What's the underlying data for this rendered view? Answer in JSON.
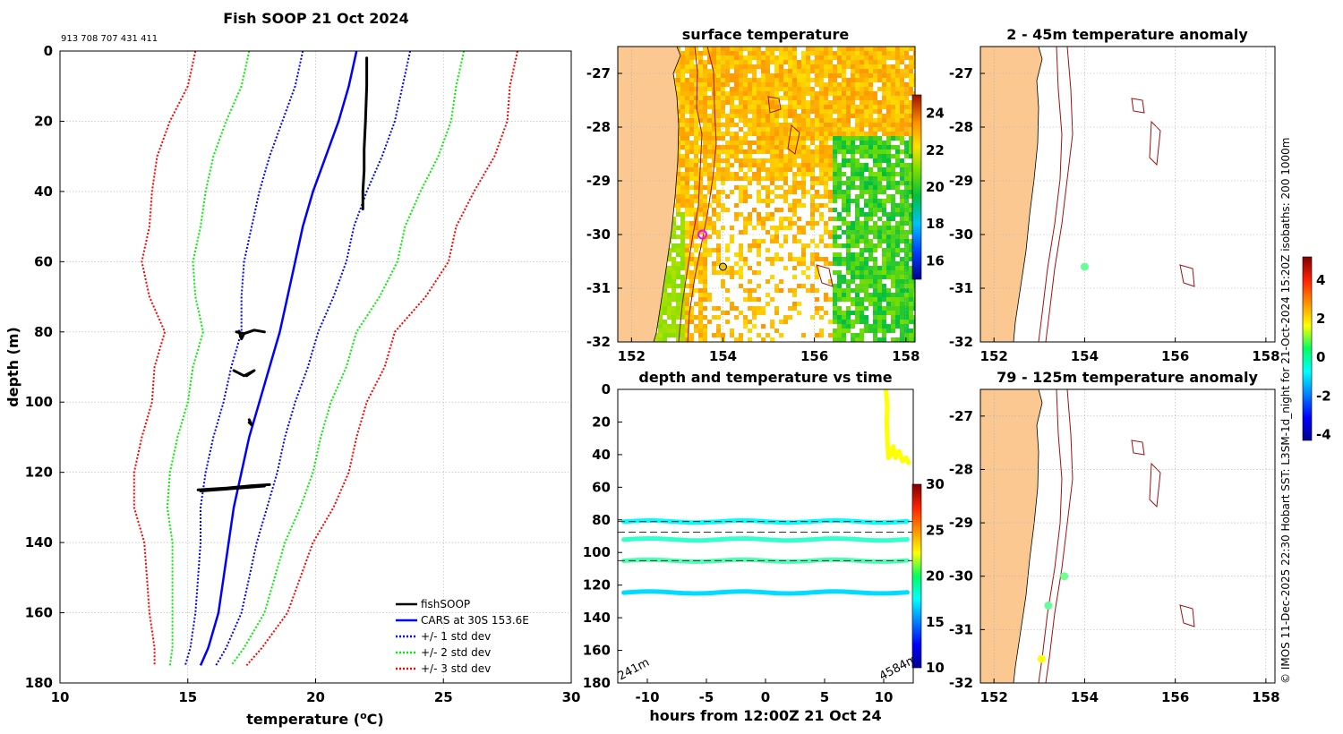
{
  "figure": {
    "ids_text": "913 708 707 431 411",
    "side_caption": "© IMOS 11-Dec-2025 22:30 Hobart SST: L3SM-1d_night for 21-Oct-2024 15:20Z isobaths: 200  1000m"
  },
  "chart_data": [
    {
      "id": "profile",
      "type": "line",
      "title": "Fish SOOP 21 Oct 2024",
      "xlabel": "temperature (°C)",
      "xlabel_parts": {
        "pre": "temperature (",
        "sup": "o",
        "post": "C)"
      },
      "ylabel": "depth (m)",
      "xlim": [
        10,
        30
      ],
      "ylim": [
        180,
        0
      ],
      "xticks": [
        "10",
        "15",
        "20",
        "25",
        "30"
      ],
      "yticks": [
        "0",
        "20",
        "40",
        "60",
        "80",
        "100",
        "120",
        "140",
        "160",
        "180"
      ],
      "grid": true,
      "legend_position": "bottom-right",
      "cars": {
        "depth": [
          0,
          10,
          20,
          30,
          40,
          50,
          60,
          70,
          80,
          90,
          100,
          110,
          120,
          130,
          140,
          150,
          160,
          170,
          175
        ],
        "mean": [
          21.6,
          21.3,
          20.9,
          20.4,
          19.9,
          19.5,
          19.2,
          18.9,
          18.6,
          18.2,
          17.8,
          17.4,
          17.1,
          16.8,
          16.6,
          16.4,
          16.2,
          15.8,
          15.5
        ],
        "std": [
          2.1,
          2.1,
          2.2,
          2.2,
          2.1,
          2.0,
          2.0,
          1.8,
          1.5,
          1.5,
          1.4,
          1.4,
          1.4,
          1.3,
          1.1,
          1.0,
          0.9,
          0.7,
          0.6
        ]
      },
      "fishsoop_segments": [
        {
          "points": [
            [
              22.0,
              2
            ],
            [
              22.0,
              10
            ],
            [
              21.95,
              20
            ],
            [
              21.9,
              28
            ],
            [
              21.9,
              34
            ],
            [
              21.85,
              40
            ],
            [
              21.85,
              45
            ]
          ]
        },
        {
          "points": [
            [
              16.9,
              80
            ],
            [
              17.2,
              80.5
            ],
            [
              17.6,
              79.5
            ],
            [
              18.0,
              80
            ]
          ]
        },
        {
          "points": [
            [
              17.0,
              79.8
            ],
            [
              17.1,
              82
            ],
            [
              17.2,
              80.5
            ]
          ]
        },
        {
          "points": [
            [
              16.8,
              91
            ],
            [
              17.2,
              92.5
            ],
            [
              17.6,
              91
            ],
            [
              17.3,
              92.5
            ]
          ]
        },
        {
          "points": [
            [
              17.4,
              105
            ],
            [
              17.5,
              106.5
            ],
            [
              17.4,
              105.8
            ]
          ]
        },
        {
          "points": [
            [
              15.4,
              125
            ],
            [
              16.5,
              124.5
            ],
            [
              17.5,
              123.8
            ],
            [
              18.2,
              123.5
            ]
          ]
        },
        {
          "points": [
            [
              15.5,
              125.3
            ],
            [
              17.0,
              124.5
            ],
            [
              18.0,
              123.9
            ]
          ]
        }
      ],
      "legend": [
        {
          "label": "fishSOOP",
          "color": "#000000",
          "style": "solid"
        },
        {
          "label": "CARS at 30S 153.6E",
          "color": "#0000ff",
          "style": "solid"
        },
        {
          "label": "+/- 1 std dev",
          "color": "#0000ff",
          "style": "dotted"
        },
        {
          "label": "+/- 2 std dev",
          "color": "#00ee00",
          "style": "dotted"
        },
        {
          "label": "+/- 3 std dev",
          "color": "#ff0000",
          "style": "dotted"
        }
      ]
    },
    {
      "id": "sst",
      "type": "heatmap",
      "title": "surface temperature",
      "xlim": [
        151.7,
        158.2
      ],
      "ylim": [
        -32,
        -26.5
      ],
      "xticks": [
        "152",
        "154",
        "156",
        "158"
      ],
      "yticks": [
        "-27",
        "-28",
        "-29",
        "-30",
        "-31",
        "-32"
      ],
      "colorbar": {
        "range": [
          15,
          25
        ],
        "ticks": [
          "16",
          "18",
          "20",
          "22",
          "24"
        ]
      },
      "markers": [
        {
          "lon": 153.55,
          "lat": -30.0,
          "kind": "ring",
          "color": "#ff00ff"
        },
        {
          "lon": 154.0,
          "lat": -30.6,
          "kind": "dot",
          "color": "#e8c020"
        }
      ]
    },
    {
      "id": "anom_shallow",
      "type": "scatter",
      "title": "2 - 45m temperature anomaly",
      "xlim": [
        151.7,
        158.2
      ],
      "ylim": [
        -32,
        -26.5
      ],
      "xticks": [
        "152",
        "154",
        "156",
        "158"
      ],
      "yticks": [
        "-27",
        "-28",
        "-29",
        "-30",
        "-31",
        "-32"
      ],
      "points": [
        {
          "lon": 154.0,
          "lat": -30.6,
          "anomaly": 0.2
        }
      ]
    },
    {
      "id": "anom_deep",
      "type": "scatter",
      "title": "79 - 125m temperature anomaly",
      "xlim": [
        151.7,
        158.2
      ],
      "ylim": [
        -32,
        -26.5
      ],
      "xticks": [
        "152",
        "154",
        "156",
        "158"
      ],
      "yticks": [
        "-27",
        "-28",
        "-29",
        "-30",
        "-31",
        "-32"
      ],
      "points": [
        {
          "lon": 153.55,
          "lat": -30.0,
          "anomaly": 0.3
        },
        {
          "lon": 153.2,
          "lat": -30.55,
          "anomaly": 0.2
        },
        {
          "lon": 153.05,
          "lat": -31.55,
          "anomaly": 1.6
        }
      ],
      "colorbar": {
        "range": [
          -4.3,
          5.2
        ],
        "ticks": [
          "4",
          "2",
          "0",
          "-2",
          "-4"
        ]
      }
    },
    {
      "id": "timeseries",
      "type": "scatter",
      "title": "depth and temperature vs time",
      "xlabel": "hours from 12:00Z 21 Oct 24",
      "xlim": [
        -12.5,
        12.5
      ],
      "ylim": [
        180,
        0
      ],
      "xticks": [
        "-10",
        "-5",
        "0",
        "5",
        "10"
      ],
      "yticks": [
        "0",
        "20",
        "40",
        "60",
        "80",
        "100",
        "120",
        "140",
        "160",
        "180"
      ],
      "colorbar": {
        "range": [
          10,
          30
        ],
        "ticks": [
          "30",
          "25",
          "20",
          "15",
          "10"
        ]
      },
      "corner_left": "241m",
      "corner_right": "4584m",
      "dashed_depths": [
        81,
        87.5,
        105
      ],
      "tracks": [
        {
          "depth": 81,
          "temp": 17.5
        },
        {
          "depth": 92,
          "temp": 18.5
        },
        {
          "depth": 105,
          "temp": 19.0
        },
        {
          "depth": 124.5,
          "temp": 16.8
        }
      ],
      "surface_trace": {
        "points": [
          [
            10.2,
            1
          ],
          [
            10.3,
            10
          ],
          [
            10.25,
            20
          ],
          [
            10.3,
            30
          ],
          [
            10.4,
            42
          ],
          [
            10.6,
            40
          ],
          [
            10.8,
            35
          ],
          [
            11.0,
            42
          ],
          [
            11.3,
            38
          ],
          [
            11.6,
            44
          ],
          [
            11.9,
            42
          ],
          [
            12.1,
            45
          ]
        ],
        "temp": 22.5
      }
    }
  ]
}
